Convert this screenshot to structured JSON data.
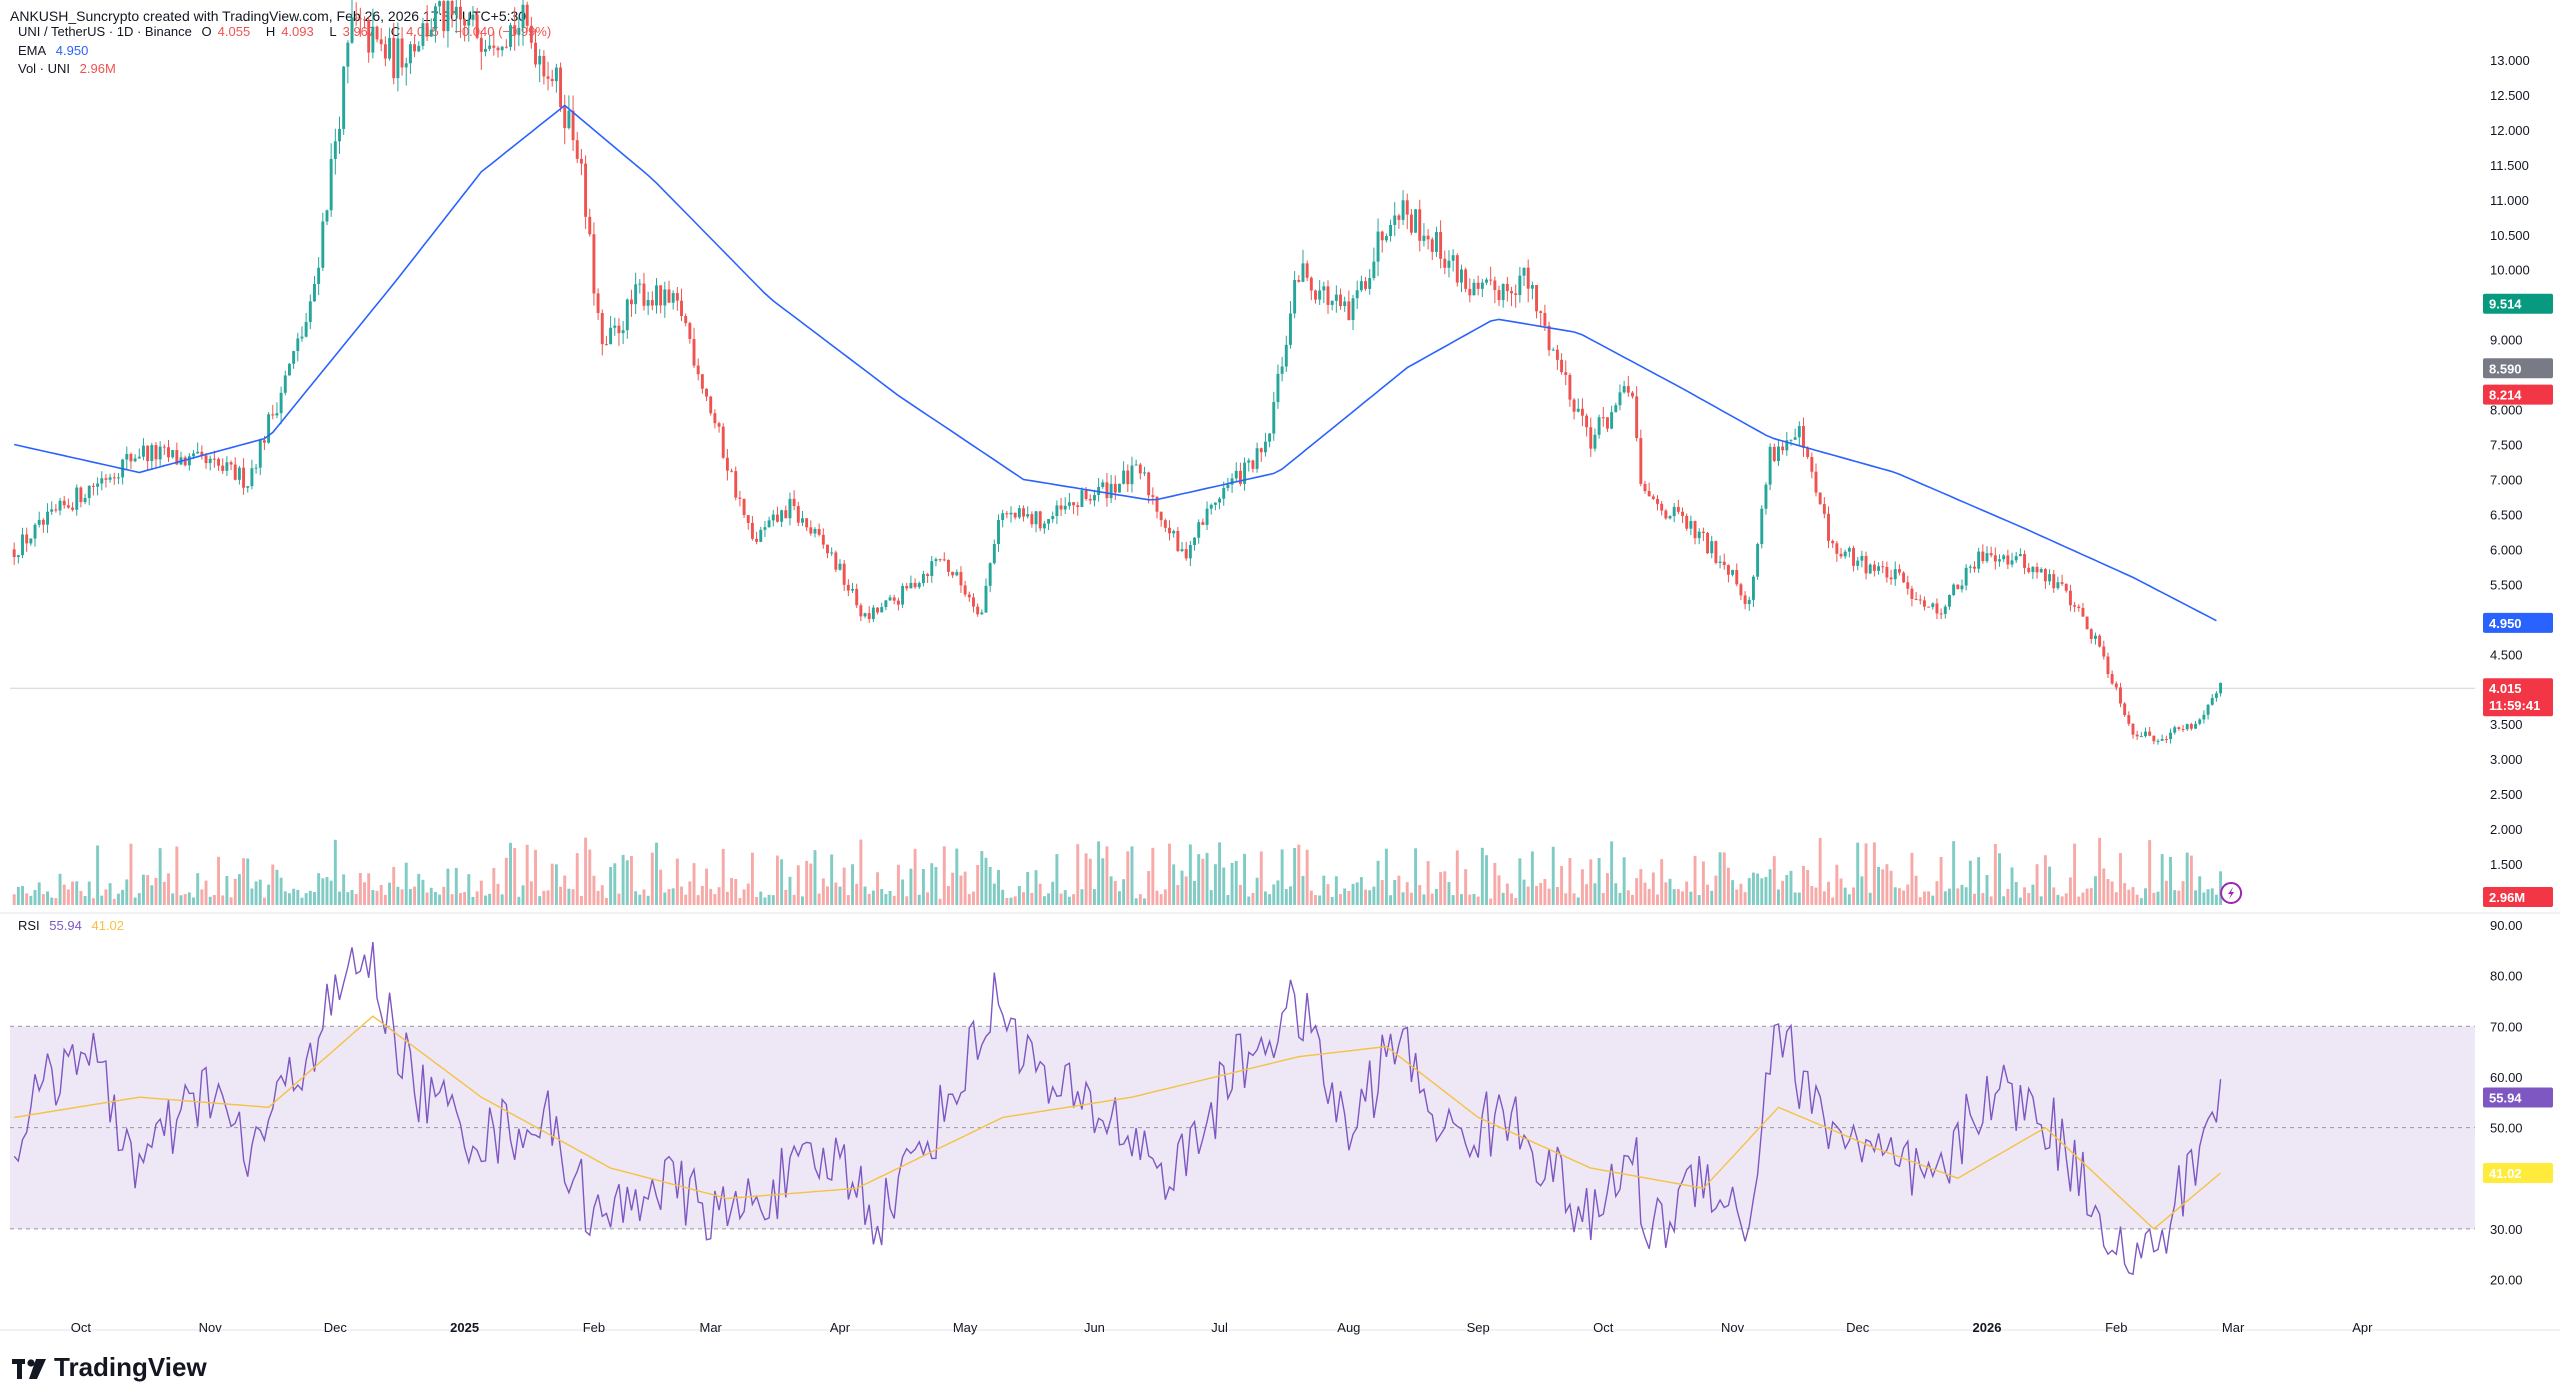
{
  "header": {
    "credit": "ANKUSH_Suncrypto created with TradingView.com, Feb 26, 2026 17:30 UTC+5:30"
  },
  "legend": {
    "symbol": "UNI / TetherUS · 1D · Binance",
    "o_label": "O",
    "o_value": "4.055",
    "h_label": "H",
    "h_value": "4.093",
    "l_label": "L",
    "l_value": "3.967",
    "c_label": "C",
    "c_value": "4.015",
    "change": "−0.040 (−0.99%)",
    "ema_label": "EMA",
    "ema_value": "4.950",
    "vol_label": "Vol · UNI",
    "vol_value": "2.96M",
    "rsi_label": "RSI",
    "rsi_value": "55.94",
    "rsi_ma_value": "41.02"
  },
  "colors": {
    "up": "#26a69a",
    "down": "#ef5350",
    "ema": "#2962ff",
    "rsi": "#7e57c2",
    "rsi_ma": "#f5c242",
    "rsi_band": "#ede7f6",
    "vol_up": "#80cbc4",
    "vol_down": "#f7a9a7",
    "ema_tag": "#2962ff",
    "price_tag": "#f23645",
    "high_tag": "#089981",
    "mid_tag": "#787b86",
    "low_tag": "#f23645",
    "rsi_ma_tag": "#ffeb3b"
  },
  "chart_data": [
    {
      "type": "candlestick",
      "title": "UNI / TetherUS · 1D · Binance",
      "y_axis": {
        "ticks": [
          "13.000",
          "12.500",
          "12.000",
          "11.500",
          "11.000",
          "10.500",
          "10.000",
          "9.000",
          "8.000",
          "7.500",
          "7.000",
          "6.500",
          "6.000",
          "5.500",
          "5.000",
          "4.500",
          "4.000",
          "3.500",
          "3.000",
          "2.500",
          "2.000",
          "1.500",
          "1.000"
        ],
        "range": [
          1.0,
          13.4
        ]
      },
      "x_axis": {
        "ticks": [
          "Oct",
          "Nov",
          "Dec",
          "2025",
          "Feb",
          "Mar",
          "Apr",
          "May",
          "Jun",
          "Jul",
          "Aug",
          "Sep",
          "Oct",
          "Nov",
          "Dec",
          "2026",
          "Feb",
          "Mar",
          "Apr"
        ]
      },
      "price_path": [
        [
          "Sep 15 2024",
          6.0
        ],
        [
          "Oct 1 2024",
          6.8
        ],
        [
          "Oct 15 2024",
          7.4
        ],
        [
          "Nov 1 2024",
          7.2
        ],
        [
          "Nov 10 2024",
          7.0
        ],
        [
          "Nov 25 2024",
          9.4
        ],
        [
          "Dec 5 2024",
          13.5
        ],
        [
          "Dec 15 2024",
          13.0
        ],
        [
          "Dec 25 2024",
          13.6
        ],
        [
          "Jan 5 2025",
          13.4
        ],
        [
          "Jan 15 2025",
          13.5
        ],
        [
          "Jan 22 2025",
          12.8
        ],
        [
          "Jan 28 2025",
          11.8
        ],
        [
          "Feb 3 2025",
          8.8
        ],
        [
          "Feb 12 2025",
          9.7
        ],
        [
          "Feb 22 2025",
          9.4
        ],
        [
          "Mar 3 2025",
          7.6
        ],
        [
          "Mar 11 2025",
          6.1
        ],
        [
          "Mar 20 2025",
          6.6
        ],
        [
          "Mar 30 2025",
          5.9
        ],
        [
          "Apr 7 2025",
          5.0
        ],
        [
          "Apr 15 2025",
          5.3
        ],
        [
          "Apr 25 2025",
          5.9
        ],
        [
          "May 5 2025",
          5.1
        ],
        [
          "May 9 2025",
          6.5
        ],
        [
          "May 20 2025",
          6.4
        ],
        [
          "Jun 1 2025",
          6.8
        ],
        [
          "Jun 12 2025",
          7.1
        ],
        [
          "Jun 22 2025",
          5.9
        ],
        [
          "Jul 1 2025",
          6.8
        ],
        [
          "Jul 12 2025",
          7.4
        ],
        [
          "Jul 20 2025",
          10.0
        ],
        [
          "Aug 1 2025",
          9.3
        ],
        [
          "Aug 12 2025",
          11.0
        ],
        [
          "Aug 20 2025",
          10.5
        ],
        [
          "Sep 1 2025",
          9.6
        ],
        [
          "Sep 12 2025",
          9.9
        ],
        [
          "Sep 20 2025",
          8.7
        ],
        [
          "Sep 28 2025",
          7.6
        ],
        [
          "Oct 8 2025",
          8.3
        ],
        [
          "Oct 10 2025",
          6.8
        ],
        [
          "Oct 20 2025",
          6.4
        ],
        [
          "Nov 1 2025",
          5.7
        ],
        [
          "Nov 5 2025",
          5.2
        ],
        [
          "Nov 10 2025",
          7.4
        ],
        [
          "Nov 17 2025",
          7.6
        ],
        [
          "Nov 25 2025",
          6.0
        ],
        [
          "Dec 10 2025",
          5.6
        ],
        [
          "Dec 20 2025",
          5.1
        ],
        [
          "Jan 1 2026",
          6.0
        ],
        [
          "Jan 10 2026",
          5.8
        ],
        [
          "Jan 20 2026",
          5.4
        ],
        [
          "Jan 28 2026",
          4.6
        ],
        [
          "Feb 5 2026",
          3.4
        ],
        [
          "Feb 10 2026",
          3.3
        ],
        [
          "Feb 20 2026",
          3.5
        ],
        [
          "Feb 25 2026",
          4.0
        ],
        [
          "Feb 26 2026",
          4.015
        ]
      ],
      "ema_path": [
        [
          "Sep 15 2024",
          7.5
        ],
        [
          "Oct 15 2024",
          7.1
        ],
        [
          "Nov 15 2024",
          7.6
        ],
        [
          "Dec 15 2024",
          9.8
        ],
        [
          "Jan 5 2025",
          11.4
        ],
        [
          "Jan 25 2025",
          12.35
        ],
        [
          "Feb 15 2025",
          11.3
        ],
        [
          "Mar 15 2025",
          9.6
        ],
        [
          "Apr 15 2025",
          8.2
        ],
        [
          "May 15 2025",
          7.0
        ],
        [
          "Jun 15 2025",
          6.7
        ],
        [
          "Jul 15 2025",
          7.1
        ],
        [
          "Aug 15 2025",
          8.6
        ],
        [
          "Sep 5 2025",
          9.3
        ],
        [
          "Sep 25 2025",
          9.1
        ],
        [
          "Oct 20 2025",
          8.3
        ],
        [
          "Nov 10 2025",
          7.6
        ],
        [
          "Dec 10 2025",
          7.1
        ],
        [
          "Jan 10 2026",
          6.3
        ],
        [
          "Feb 5 2026",
          5.6
        ],
        [
          "Feb 26 2026",
          4.95
        ]
      ],
      "tags": {
        "high": "9.514",
        "mid": "8.590",
        "low": "8.214",
        "ema": "4.950",
        "last": "4.015",
        "countdown": "11:59:41",
        "volume": "2.96M"
      }
    },
    {
      "type": "line",
      "title": "RSI",
      "y_axis": {
        "ticks": [
          "90.00",
          "80.00",
          "70.00",
          "60.00",
          "50.00",
          "40.00",
          "30.00",
          "20.00"
        ],
        "range": [
          12,
          90
        ]
      },
      "bands": {
        "upper": 70,
        "middle": 50,
        "lower": 30
      },
      "rsi_path": [
        [
          "Sep 15 2024",
          48
        ],
        [
          "Oct 1 2024",
          68
        ],
        [
          "Oct 15 2024",
          42
        ],
        [
          "Nov 1 2024",
          58
        ],
        [
          "Nov 10 2024",
          44
        ],
        [
          "Nov 25 2024",
          66
        ],
        [
          "Dec 8 2024",
          85
        ],
        [
          "Dec 20 2024",
          58
        ],
        [
          "Jan 5 2025",
          48
        ],
        [
          "Jan 20 2025",
          52
        ],
        [
          "Feb 3 2025",
          30
        ],
        [
          "Feb 15 2025",
          40
        ],
        [
          "Mar 5 2025",
          32
        ],
        [
          "Mar 15 2025",
          38
        ],
        [
          "Apr 1 2025",
          44
        ],
        [
          "Apr 10 2025",
          32
        ],
        [
          "Apr 25 2025",
          52
        ],
        [
          "May 9 2025",
          76
        ],
        [
          "May 20 2025",
          58
        ],
        [
          "Jun 5 2025",
          52
        ],
        [
          "Jun 20 2025",
          40
        ],
        [
          "Jul 5 2025",
          62
        ],
        [
          "Jul 20 2025",
          74
        ],
        [
          "Aug 1 2025",
          48
        ],
        [
          "Aug 12 2025",
          68
        ],
        [
          "Aug 25 2025",
          48
        ],
        [
          "Sep 10 2025",
          52
        ],
        [
          "Sep 28 2025",
          30
        ],
        [
          "Oct 8 2025",
          46
        ],
        [
          "Oct 12 2025",
          28
        ],
        [
          "Oct 25 2025",
          42
        ],
        [
          "Nov 5 2025",
          30
        ],
        [
          "Nov 11 2025",
          72
        ],
        [
          "Nov 20 2025",
          54
        ],
        [
          "Dec 5 2025",
          44
        ],
        [
          "Dec 20 2025",
          38
        ],
        [
          "Jan 1 2026",
          58
        ],
        [
          "Jan 15 2026",
          52
        ],
        [
          "Jan 28 2026",
          34
        ],
        [
          "Feb 5 2026",
          22
        ],
        [
          "Feb 12 2026",
          28
        ],
        [
          "Feb 20 2026",
          44
        ],
        [
          "Feb 26 2026",
          55.94
        ]
      ],
      "rsi_ma_path": [
        [
          "Sep 15 2024",
          52
        ],
        [
          "Oct 15 2024",
          56
        ],
        [
          "Nov 15 2024",
          54
        ],
        [
          "Dec 10 2024",
          72
        ],
        [
          "Jan 5 2025",
          56
        ],
        [
          "Feb 5 2025",
          42
        ],
        [
          "Mar 5 2025",
          36
        ],
        [
          "Apr 5 2025",
          38
        ],
        [
          "May 10 2025",
          52
        ],
        [
          "Jun 10 2025",
          56
        ],
        [
          "Jul 20 2025",
          64
        ],
        [
          "Aug 10 2025",
          66
        ],
        [
          "Sep 1 2025",
          52
        ],
        [
          "Sep 28 2025",
          42
        ],
        [
          "Oct 25 2025",
          38
        ],
        [
          "Nov 12 2025",
          54
        ],
        [
          "Dec 5 2025",
          46
        ],
        [
          "Dec 25 2025",
          40
        ],
        [
          "Jan 15 2026",
          50
        ],
        [
          "Feb 10 2026",
          30
        ],
        [
          "Feb 26 2026",
          41.02
        ]
      ],
      "tags": {
        "rsi": "55.94",
        "rsi_ma": "41.02"
      }
    }
  ],
  "brand": {
    "logo_text": "TradingView"
  }
}
